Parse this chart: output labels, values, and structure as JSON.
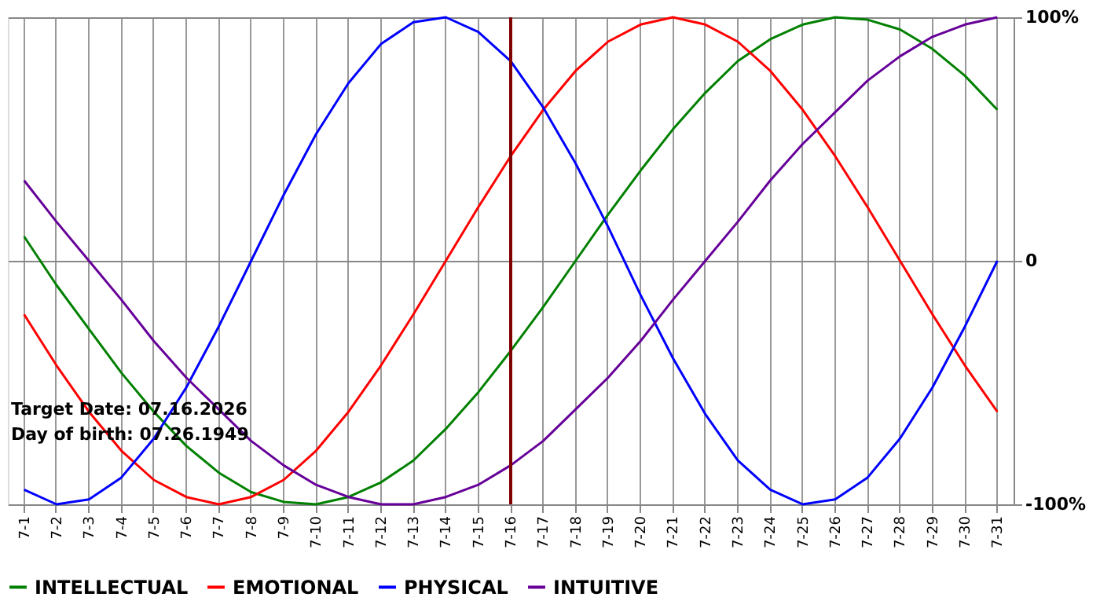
{
  "chart_data": {
    "type": "line",
    "categories": [
      "7-1",
      "7-2",
      "7-3",
      "7-4",
      "7-5",
      "7-6",
      "7-7",
      "7-8",
      "7-9",
      "7-10",
      "7-11",
      "7-12",
      "7-13",
      "7-14",
      "7-15",
      "7-16",
      "7-17",
      "7-18",
      "7-19",
      "7-20",
      "7-21",
      "7-22",
      "7-23",
      "7-24",
      "7-25",
      "7-26",
      "7-27",
      "7-28",
      "7-29",
      "7-30",
      "7-31"
    ],
    "series": [
      {
        "name": "INTELLECTUAL",
        "color": "#008000",
        "values": [
          10,
          -10,
          -28,
          -46,
          -62,
          -76,
          -87,
          -95,
          -99,
          -100,
          -97,
          -91,
          -82,
          -69,
          -54,
          -37,
          -19,
          0,
          19,
          37,
          54,
          69,
          82,
          91,
          97,
          100,
          99,
          95,
          87,
          76,
          62
        ]
      },
      {
        "name": "EMOTIONAL",
        "color": "#ff0000",
        "values": [
          -22,
          -43,
          -62,
          -78,
          -90,
          -97,
          -100,
          -97,
          -90,
          -78,
          -62,
          -43,
          -22,
          0,
          22,
          43,
          62,
          78,
          90,
          97,
          100,
          97,
          90,
          78,
          62,
          43,
          22,
          0,
          -22,
          -43,
          -62
        ]
      },
      {
        "name": "PHYSICAL",
        "color": "#0000ff",
        "values": [
          -94,
          -100,
          -98,
          -89,
          -73,
          -52,
          -27,
          0,
          27,
          52,
          73,
          89,
          98,
          100,
          94,
          82,
          63,
          40,
          14,
          -14,
          -40,
          -63,
          -82,
          -94,
          -100,
          -98,
          -89,
          -73,
          -52,
          -27,
          0
        ]
      },
      {
        "name": "INTUITIVE",
        "color": "#660099",
        "values": [
          33,
          16,
          0,
          -16,
          -33,
          -48,
          -61,
          -74,
          -84,
          -92,
          -97,
          -100,
          -100,
          -97,
          -92,
          -84,
          -74,
          -61,
          -48,
          -33,
          -16,
          0,
          16,
          33,
          48,
          61,
          74,
          84,
          92,
          97,
          100
        ]
      }
    ],
    "ylim": [
      -100,
      100
    ],
    "yticks": [
      {
        "value": 100,
        "label": "100%"
      },
      0,
      {
        "value": -100,
        "label": "-100%"
      }
    ],
    "grid": true,
    "legend": "bottom left",
    "marker": "none",
    "line_style": "solid",
    "ref_lines": [
      {
        "axis": "x",
        "value": "7-16",
        "color": "#800000"
      }
    ],
    "annotations": [
      "Target Date: 07.16.2026",
      "Day of birth: 07.26.1949"
    ]
  }
}
